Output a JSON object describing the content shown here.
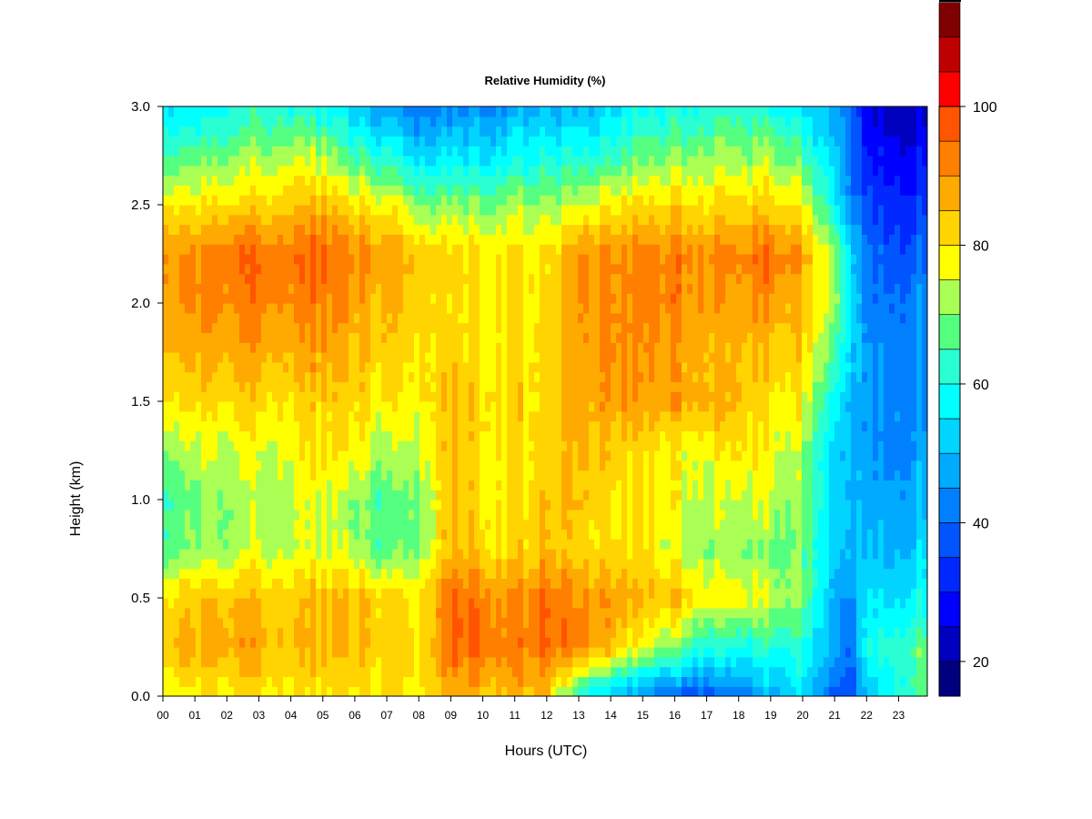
{
  "chart_data": {
    "type": "heatmap",
    "title": "Relative Humidity (%)",
    "xlabel": "Hours (UTC)",
    "ylabel": "Height (km)",
    "x_ticks": [
      "00",
      "01",
      "02",
      "03",
      "04",
      "05",
      "06",
      "07",
      "08",
      "09",
      "10",
      "11",
      "12",
      "13",
      "14",
      "15",
      "16",
      "17",
      "18",
      "19",
      "20",
      "21",
      "22",
      "23"
    ],
    "y_ticks": [
      "0.0",
      "0.5",
      "1.0",
      "1.5",
      "2.0",
      "2.5",
      "3.0"
    ],
    "xlim": [
      0,
      23.9
    ],
    "ylim": [
      0,
      3.0
    ],
    "colorbar": {
      "ticks": [
        "20",
        "40",
        "60",
        "80",
        "100"
      ],
      "range": [
        15,
        100
      ],
      "step": 5,
      "colors": [
        "#00007F",
        "#0000BF",
        "#0000FF",
        "#0028FF",
        "#0055FF",
        "#0080FF",
        "#00AAFF",
        "#00D4FF",
        "#00FFFF",
        "#2AFFD4",
        "#55FF80",
        "#AAFF55",
        "#FFFF00",
        "#FFD400",
        "#FFAA00",
        "#FF7F00",
        "#FF5500",
        "#FF0000",
        "#BF0000",
        "#7F0000"
      ]
    },
    "x": [
      0,
      1,
      2,
      3,
      4,
      5,
      6,
      7,
      8,
      9,
      10,
      11,
      12,
      13,
      14,
      15,
      16,
      17,
      18,
      19,
      20,
      21,
      21.5,
      22,
      23,
      23.9
    ],
    "y": [
      0,
      0.25,
      0.5,
      0.75,
      1.0,
      1.25,
      1.5,
      1.75,
      2.0,
      2.25,
      2.5,
      2.75,
      3.0
    ],
    "z": [
      [
        75,
        80,
        80,
        80,
        80,
        80,
        80,
        80,
        80,
        85,
        85,
        85,
        85,
        60,
        50,
        42,
        38,
        40,
        42,
        48,
        55,
        40,
        38,
        50,
        60,
        70
      ],
      [
        85,
        88,
        88,
        88,
        85,
        85,
        85,
        82,
        82,
        95,
        95,
        92,
        95,
        92,
        85,
        75,
        70,
        62,
        60,
        62,
        60,
        50,
        40,
        60,
        65,
        70
      ],
      [
        80,
        85,
        85,
        85,
        85,
        85,
        85,
        82,
        80,
        95,
        92,
        90,
        95,
        90,
        88,
        85,
        85,
        80,
        78,
        75,
        70,
        50,
        45,
        55,
        55,
        60
      ],
      [
        65,
        72,
        72,
        75,
        75,
        75,
        72,
        65,
        72,
        85,
        82,
        82,
        85,
        82,
        80,
        80,
        75,
        72,
        70,
        70,
        68,
        55,
        50,
        50,
        50,
        55
      ],
      [
        65,
        70,
        72,
        72,
        75,
        75,
        72,
        65,
        72,
        85,
        80,
        80,
        85,
        85,
        80,
        80,
        78,
        75,
        75,
        75,
        70,
        55,
        50,
        48,
        48,
        50
      ],
      [
        70,
        75,
        75,
        75,
        78,
        80,
        78,
        72,
        75,
        85,
        80,
        80,
        82,
        85,
        82,
        80,
        78,
        78,
        80,
        78,
        72,
        55,
        50,
        45,
        45,
        48
      ],
      [
        80,
        82,
        82,
        82,
        82,
        82,
        82,
        78,
        80,
        85,
        82,
        82,
        82,
        88,
        88,
        88,
        88,
        88,
        85,
        80,
        78,
        60,
        50,
        45,
        45,
        45
      ],
      [
        85,
        88,
        88,
        88,
        88,
        88,
        85,
        82,
        82,
        82,
        80,
        80,
        82,
        88,
        90,
        90,
        88,
        88,
        85,
        85,
        82,
        68,
        55,
        45,
        45,
        45
      ],
      [
        88,
        92,
        92,
        92,
        92,
        92,
        88,
        85,
        85,
        80,
        80,
        80,
        82,
        90,
        90,
        90,
        92,
        90,
        88,
        90,
        85,
        75,
        55,
        42,
        42,
        45
      ],
      [
        90,
        92,
        95,
        95,
        95,
        95,
        92,
        88,
        85,
        82,
        80,
        80,
        80,
        90,
        90,
        92,
        92,
        92,
        92,
        95,
        88,
        75,
        55,
        40,
        38,
        40
      ],
      [
        80,
        80,
        82,
        82,
        85,
        85,
        80,
        78,
        72,
        70,
        70,
        72,
        72,
        75,
        78,
        80,
        82,
        82,
        82,
        82,
        78,
        60,
        45,
        35,
        32,
        35
      ],
      [
        65,
        68,
        70,
        72,
        75,
        72,
        65,
        60,
        55,
        55,
        55,
        58,
        60,
        60,
        62,
        68,
        70,
        72,
        72,
        72,
        65,
        55,
        42,
        30,
        28,
        30
      ],
      [
        55,
        55,
        60,
        62,
        62,
        58,
        52,
        45,
        42,
        42,
        45,
        48,
        50,
        50,
        52,
        58,
        60,
        62,
        62,
        60,
        55,
        50,
        40,
        25,
        22,
        25
      ]
    ]
  }
}
